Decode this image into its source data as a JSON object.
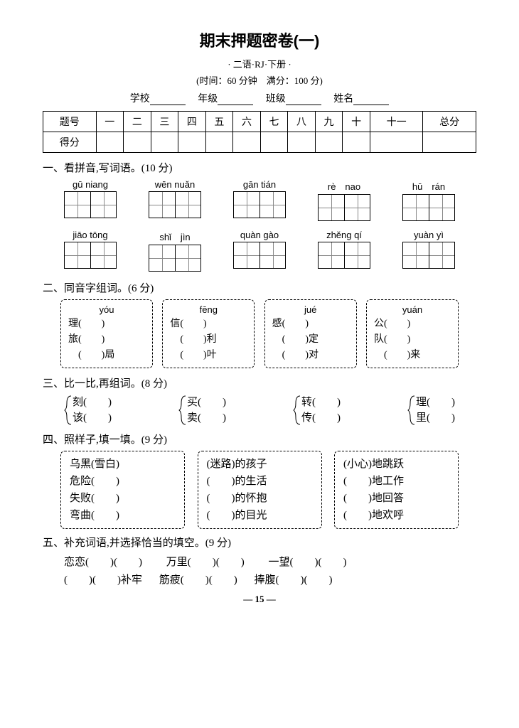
{
  "title": "期末押题密卷(一)",
  "subtitle": "· 二语·RJ·下册 ·",
  "timeinfo": "(时间：60 分钟　满分：100 分)",
  "info_labels": {
    "school": "学校",
    "grade": "年级",
    "class": "班级",
    "name": "姓名"
  },
  "score_header": [
    "题号",
    "一",
    "二",
    "三",
    "四",
    "五",
    "六",
    "七",
    "八",
    "九",
    "十",
    "十一",
    "总分"
  ],
  "score_row_label": "得分",
  "sections": {
    "s1": {
      "head": "一、看拼音,写词语。(10 分)",
      "row1": [
        {
          "py": "gū niang",
          "n": 2
        },
        {
          "py": "wēn nuǎn",
          "n": 2
        },
        {
          "py": "gān tián",
          "n": 2
        },
        {
          "py": "rè　nao",
          "n": 2
        },
        {
          "py": "hū　rán",
          "n": 2
        }
      ],
      "row2": [
        {
          "py": "jiāo tōng",
          "n": 2
        },
        {
          "py": "shǐ　jìn",
          "n": 2
        },
        {
          "py": "quàn gào",
          "n": 2
        },
        {
          "py": "zhěng qí",
          "n": 2
        },
        {
          "py": "yuàn yì",
          "n": 2
        }
      ]
    },
    "s2": {
      "head": "二、同音字组词。(6 分)",
      "boxes": [
        {
          "hdr": "yóu",
          "lines": [
            "理(　　)",
            "旅(　　)",
            "　(　　)局"
          ]
        },
        {
          "hdr": "fēng",
          "lines": [
            "信(　　)",
            "　(　　)利",
            "　(　　)叶"
          ]
        },
        {
          "hdr": "jué",
          "lines": [
            "感(　　)",
            "　(　　)定",
            "　(　　)对"
          ]
        },
        {
          "hdr": "yuán",
          "lines": [
            "公(　　)",
            "队(　　)",
            "　(　　)来"
          ]
        }
      ]
    },
    "s3": {
      "head": "三、比一比,再组词。(8 分)",
      "pairs": [
        [
          "刻(　　)",
          "该(　　)"
        ],
        [
          "买(　　)",
          "卖(　　)"
        ],
        [
          "转(　　)",
          "传(　　)"
        ],
        [
          "理(　　)",
          "里(　　)"
        ]
      ]
    },
    "s4": {
      "head": "四、照样子,填一填。(9 分)",
      "boxes": [
        [
          "乌黑(雪白)",
          "危险(　　)",
          "失败(　　)",
          "弯曲(　　)"
        ],
        [
          "(迷路)的孩子",
          "(　　)的生活",
          "(　　)的怀抱",
          "(　　)的目光"
        ],
        [
          "(小心)地跳跃",
          "(　　)地工作",
          "(　　)地回答",
          "(　　)地欢呼"
        ]
      ]
    },
    "s5": {
      "head": "五、补充词语,并选择恰当的填空。(9 分)",
      "l1_a": "恋恋(　　)(　　)",
      "l1_b": "万里(　　)(　　)",
      "l1_c": "一望(　　)(　　)",
      "l2_a": "(　　)(　　)补牢",
      "l2_b": "筋疲(　　)(　　)",
      "l2_c": "捧腹(　　)(　　)"
    }
  },
  "page_num": "— 15 —"
}
